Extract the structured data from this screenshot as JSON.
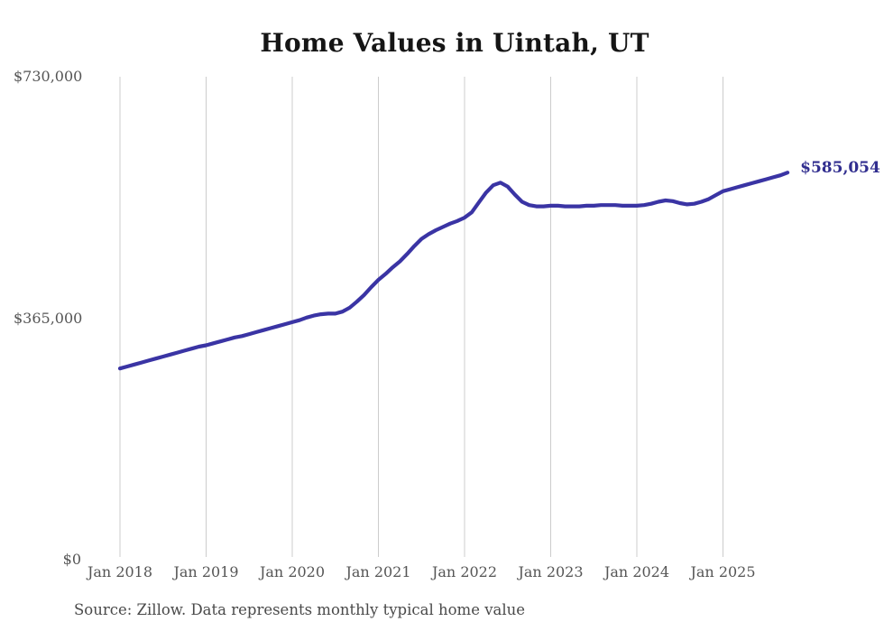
{
  "chart_data": {
    "type": "line",
    "title": "Home Values in Uintah, UT",
    "source_note": "Source: Zillow. Data represents monthly typical home value",
    "series_name": "Typical home value",
    "frequency": "monthly",
    "x_tick_labels": [
      "Jan 2018",
      "Jan 2019",
      "Jan 2020",
      "Jan 2021",
      "Jan 2022",
      "Jan 2023",
      "Jan 2024",
      "Jan 2025"
    ],
    "y_tick_labels": [
      "$730,000",
      "$365,000",
      "$0"
    ],
    "y_tick_values": [
      730000,
      365000,
      0
    ],
    "ylim": [
      0,
      730000
    ],
    "grid": "vertical-only",
    "legend_position": "none",
    "end_label": "$585,054",
    "last_value": 585054,
    "line_color": "#3a34a4",
    "end_label_color": "#312e8f",
    "grid_color": "#cccccc",
    "tick_color": "#555555",
    "title_color": "#151515",
    "source_color": "#4a4a4a",
    "months": [
      "2018-01",
      "2018-02",
      "2018-03",
      "2018-04",
      "2018-05",
      "2018-06",
      "2018-07",
      "2018-08",
      "2018-09",
      "2018-10",
      "2018-11",
      "2018-12",
      "2019-01",
      "2019-02",
      "2019-03",
      "2019-04",
      "2019-05",
      "2019-06",
      "2019-07",
      "2019-08",
      "2019-09",
      "2019-10",
      "2019-11",
      "2019-12",
      "2020-01",
      "2020-02",
      "2020-03",
      "2020-04",
      "2020-05",
      "2020-06",
      "2020-07",
      "2020-08",
      "2020-09",
      "2020-10",
      "2020-11",
      "2020-12",
      "2021-01",
      "2021-02",
      "2021-03",
      "2021-04",
      "2021-05",
      "2021-06",
      "2021-07",
      "2021-08",
      "2021-09",
      "2021-10",
      "2021-11",
      "2021-12",
      "2022-01",
      "2022-02",
      "2022-03",
      "2022-04",
      "2022-05",
      "2022-06",
      "2022-07",
      "2022-08",
      "2022-09",
      "2022-10",
      "2022-11",
      "2022-12",
      "2023-01",
      "2023-02",
      "2023-03",
      "2023-04",
      "2023-05",
      "2023-06",
      "2023-07",
      "2023-08",
      "2023-09",
      "2023-10",
      "2023-11",
      "2023-12",
      "2024-01",
      "2024-02",
      "2024-03",
      "2024-04",
      "2024-05",
      "2024-06",
      "2024-07",
      "2024-08",
      "2024-09",
      "2024-10",
      "2024-11",
      "2024-12",
      "2025-01",
      "2025-02",
      "2025-03",
      "2025-04",
      "2025-05",
      "2025-06",
      "2025-07",
      "2025-08",
      "2025-09",
      "2025-10"
    ],
    "values": [
      289000,
      292000,
      295000,
      298000,
      301000,
      304000,
      307000,
      310000,
      313000,
      316000,
      319000,
      322000,
      324000,
      327000,
      330000,
      333000,
      336000,
      338000,
      341000,
      344000,
      347000,
      350000,
      353000,
      356000,
      359000,
      362000,
      366000,
      369000,
      371000,
      372000,
      372000,
      375000,
      381000,
      390000,
      400000,
      412000,
      423000,
      432000,
      442000,
      451000,
      462000,
      474000,
      485000,
      492000,
      498000,
      503000,
      508000,
      512000,
      517000,
      525000,
      540000,
      555000,
      566000,
      570000,
      564000,
      552000,
      541000,
      536000,
      534000,
      534000,
      535000,
      535000,
      534000,
      534000,
      534000,
      535000,
      535000,
      536000,
      536000,
      536000,
      535000,
      535000,
      535000,
      536000,
      538000,
      541000,
      543000,
      542000,
      539000,
      537000,
      538000,
      541000,
      545000,
      551000,
      557000,
      560000,
      563000,
      566000,
      569000,
      572000,
      575000,
      578000,
      581000,
      585054
    ]
  }
}
